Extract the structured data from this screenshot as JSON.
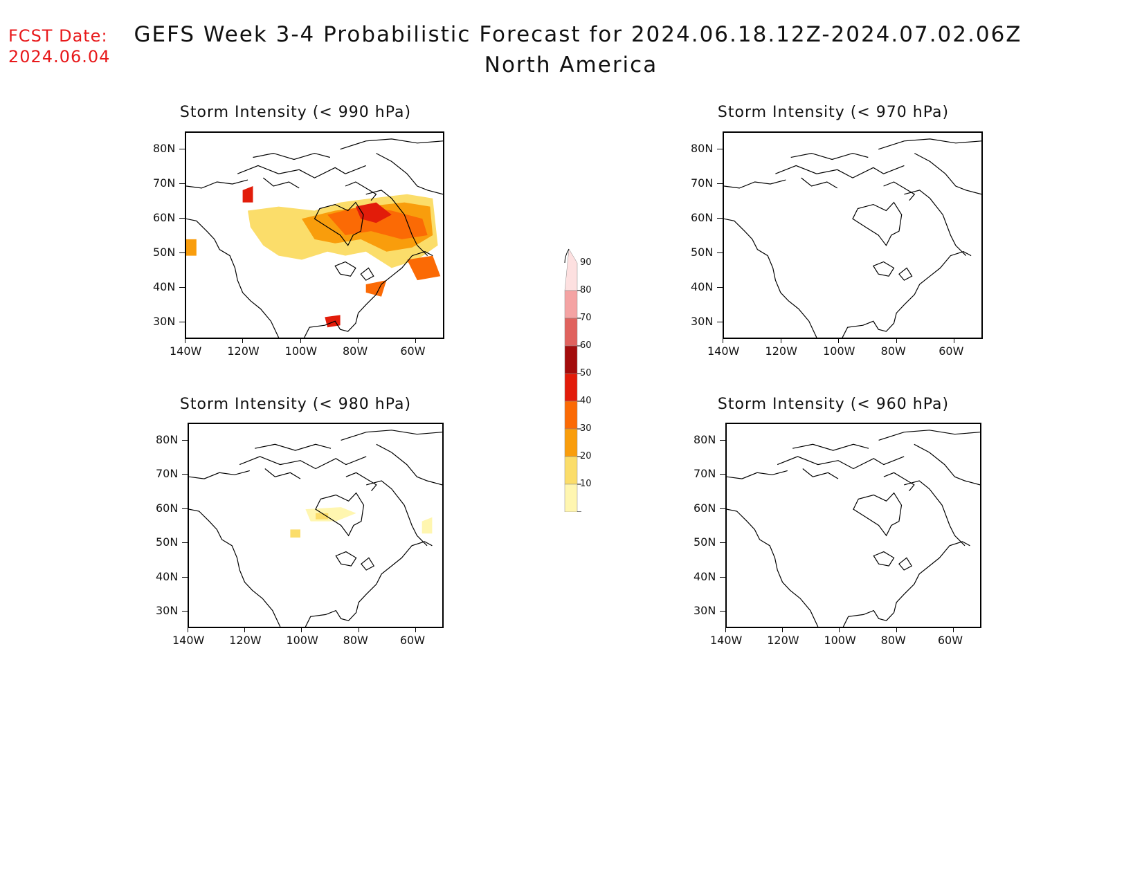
{
  "header": {
    "fcst_label": "FCST Date:",
    "fcst_date": "2024.06.04",
    "title": "GEFS Week 3-4 Probabilistic Forecast for 2024.06.18.12Z-2024.07.02.06Z",
    "subtitle": "North America"
  },
  "axes": {
    "lat_labels": [
      "80N",
      "70N",
      "60N",
      "50N",
      "40N",
      "30N"
    ],
    "lon_labels": [
      "140W",
      "120W",
      "100W",
      "80W",
      "60W"
    ]
  },
  "panels": [
    {
      "title": "Storm Intensity (< 990 hPa)",
      "has_data": true,
      "level": "high"
    },
    {
      "title": "Storm Intensity (< 970 hPa)",
      "has_data": false
    },
    {
      "title": "Storm Intensity (< 980 hPa)",
      "has_data": true,
      "level": "low"
    },
    {
      "title": "Storm Intensity (< 960 hPa)",
      "has_data": false
    }
  ],
  "colorbar": {
    "labels": [
      "90",
      "80",
      "70",
      "60",
      "50",
      "40",
      "30",
      "20",
      "10"
    ],
    "colors": [
      "#fde0e0",
      "#f4a3a3",
      "#e0625e",
      "#a30c0c",
      "#e21c0a",
      "#fb6a05",
      "#f99d0c",
      "#fbdd6a",
      "#fff6b0"
    ]
  }
}
